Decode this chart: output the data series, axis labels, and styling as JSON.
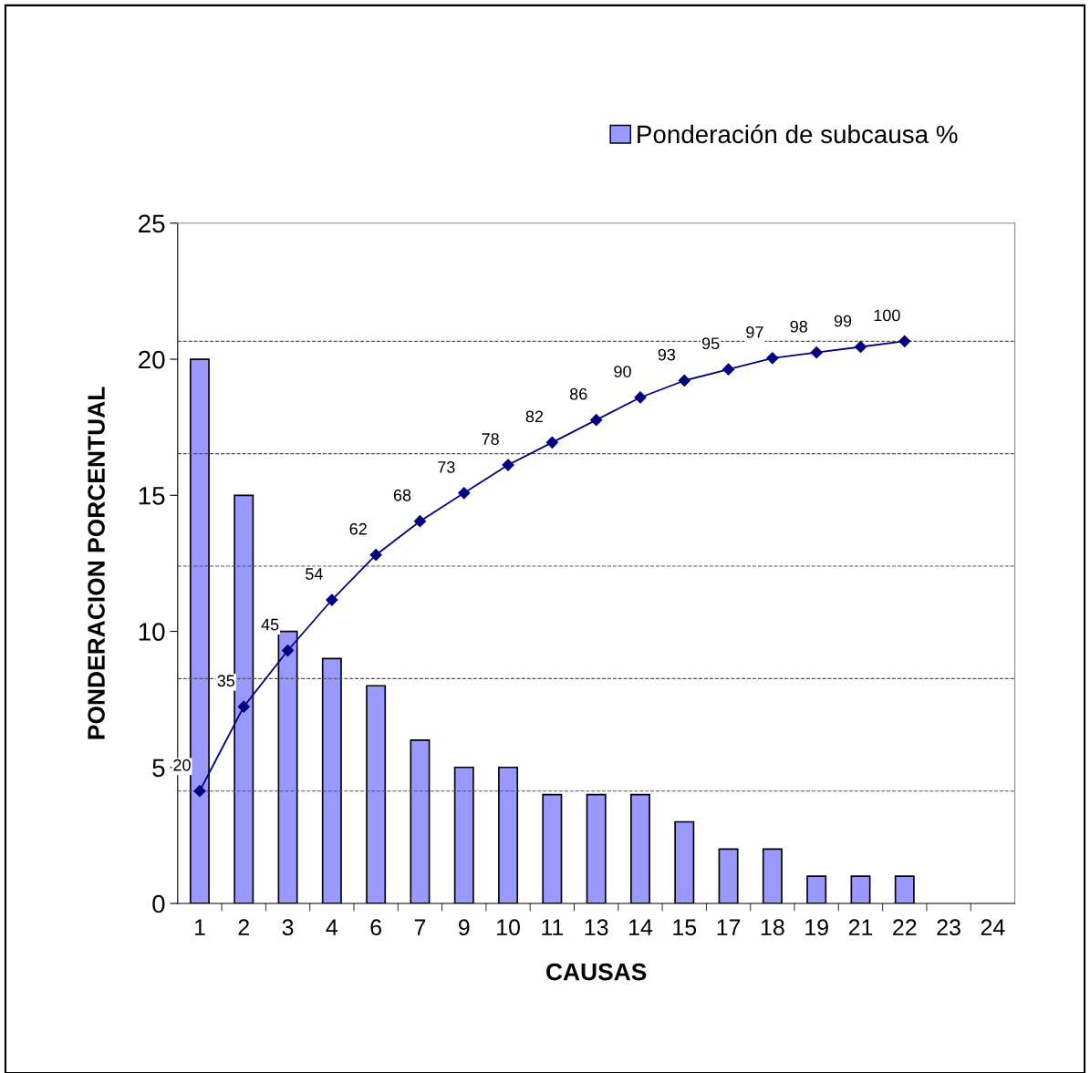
{
  "chart_data": {
    "type": "bar",
    "xlabel": "CAUSAS",
    "ylabel": "PONDERACION PORCENTUAL",
    "categories": [
      "1",
      "2",
      "3",
      "4",
      "6",
      "7",
      "9",
      "10",
      "11",
      "13",
      "14",
      "15",
      "17",
      "18",
      "19",
      "21",
      "22",
      "23",
      "24"
    ],
    "series": [
      {
        "name": "Ponderación de subcausa %",
        "color": "#9999ff",
        "values": [
          20,
          15,
          10,
          9,
          8,
          6,
          5,
          5,
          4,
          4,
          4,
          3,
          2,
          2,
          1,
          1,
          1,
          null,
          null
        ]
      },
      {
        "type": "line",
        "axis": "y2",
        "color": "#000080",
        "marker": "diamond",
        "line_style": "solid",
        "data_labels": true,
        "values": [
          20,
          35,
          45,
          54,
          62,
          68,
          73,
          78,
          82,
          86,
          90,
          93,
          95,
          97,
          98,
          99,
          100,
          null,
          null
        ]
      }
    ],
    "ylim": [
      0,
      25
    ],
    "yticks": [
      0,
      5,
      10,
      15,
      20,
      25
    ],
    "y2lim": [
      0,
      121
    ],
    "y2ticks": [
      {
        "value": 20,
        "label": null
      },
      {
        "value": 40,
        "label": null
      },
      {
        "value": 60,
        "label": null
      },
      {
        "value": 80,
        "label": null
      },
      {
        "value": 100,
        "label": null
      }
    ],
    "grid": "y2",
    "legend": "top right"
  }
}
